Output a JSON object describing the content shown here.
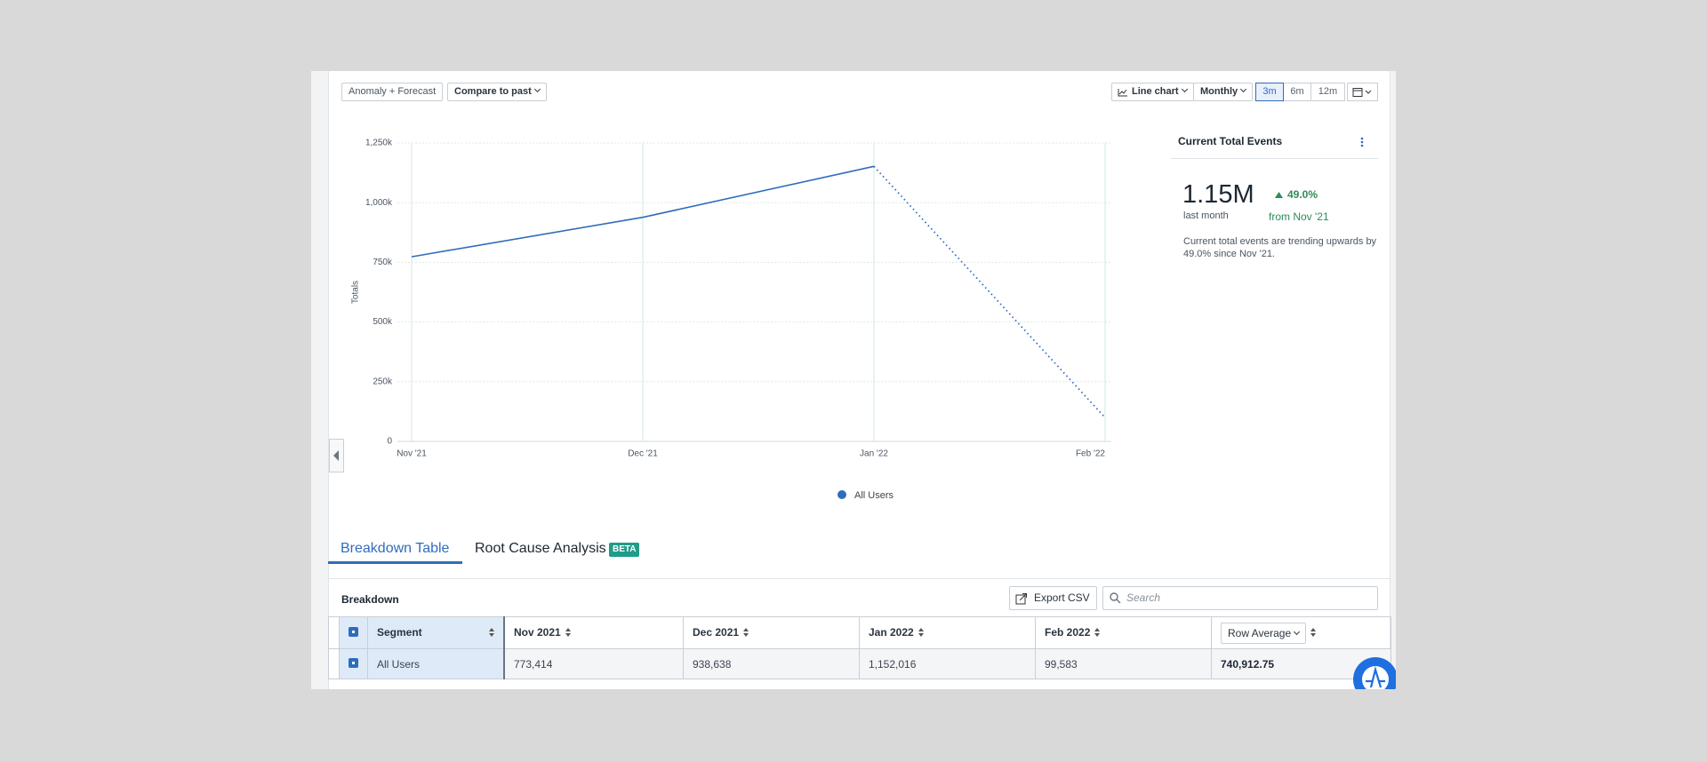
{
  "toolbar": {
    "left": [
      "Anomaly + Forecast",
      "Compare to past"
    ],
    "right": [
      "Line chart",
      "Monthly"
    ],
    "ranges": [
      "3m",
      "6m",
      "12m"
    ],
    "active_range": 0
  },
  "chart_data": {
    "type": "line",
    "y_label": "Totals",
    "categories": [
      "Nov '21",
      "Dec '21",
      "Jan '22",
      "Feb '22"
    ],
    "series": [
      {
        "name": "All Users",
        "color": "#2f6dbb",
        "values": [
          773414,
          938638,
          1152016,
          99583
        ]
      }
    ],
    "ylim": [
      0,
      1250000
    ],
    "yticks": [
      0,
      {
        "value": 250000,
        "label": "250k"
      },
      {
        "value": 500000,
        "label": "500k"
      },
      {
        "value": 750000,
        "label": "750k"
      },
      {
        "value": 1000000,
        "label": "1,000k"
      },
      {
        "value": 1250000,
        "label": "1,250k"
      }
    ],
    "grid": true,
    "dotted_last_segment": true
  },
  "summary": {
    "title": "Current Total Events",
    "value": "1.15M",
    "value_caption": "last month",
    "change": "49.0%",
    "change_caption": "from Nov '21",
    "description": "Current total events are trending upwards by 49.0% since Nov '21."
  },
  "tabs": [
    "Breakdown Table",
    "Root Cause Analysis"
  ],
  "active_tab": 0,
  "badge": "BETA",
  "breakdown": {
    "title": "Breakdown",
    "export": "Export CSV",
    "search_placeholder": "Search",
    "columns": [
      "Segment",
      "Nov 2021",
      "Dec 2021",
      "Jan 2022",
      "Feb 2022",
      "Row Average"
    ],
    "rows": [
      [
        "All Users",
        "773,414",
        "938,638",
        "1,152,016",
        "99,583",
        "740,912.75"
      ]
    ]
  }
}
